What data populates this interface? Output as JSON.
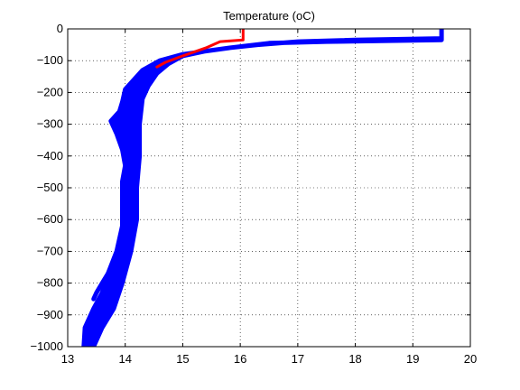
{
  "chart_data": {
    "type": "line",
    "title": "Temperature (oC)",
    "xlabel": "",
    "ylabel": "",
    "xlim": [
      13,
      20
    ],
    "ylim": [
      -1000,
      0
    ],
    "xticks": [
      13,
      14,
      15,
      16,
      17,
      18,
      19,
      20
    ],
    "yticks": [
      0,
      -100,
      -200,
      -300,
      -400,
      -500,
      -600,
      -700,
      -800,
      -900,
      -1000
    ],
    "xtick_labels": [
      "13",
      "14",
      "15",
      "16",
      "17",
      "18",
      "19",
      "20"
    ],
    "ytick_labels": [
      "0",
      "−100",
      "−200",
      "−300",
      "−400",
      "−500",
      "−600",
      "−700",
      "−800",
      "−900",
      "−1000"
    ],
    "grid": true,
    "legend": false,
    "colors": {
      "profiles": "#0000ff",
      "highlight": "#ff0000"
    },
    "series": [
      {
        "color": "#0000ff",
        "style": "envelope",
        "left": [
          [
            19.5,
            0
          ],
          [
            19.5,
            -35
          ],
          [
            17.5,
            -40
          ],
          [
            16.5,
            -45
          ],
          [
            15.8,
            -60
          ],
          [
            15.0,
            -80
          ],
          [
            14.6,
            -100
          ],
          [
            14.3,
            -130
          ],
          [
            14.15,
            -160
          ],
          [
            14.0,
            -190
          ],
          [
            13.95,
            -230
          ],
          [
            13.9,
            -260
          ],
          [
            13.75,
            -290
          ],
          [
            13.85,
            -330
          ],
          [
            13.95,
            -380
          ],
          [
            14.0,
            -430
          ],
          [
            13.95,
            -480
          ],
          [
            13.95,
            -550
          ],
          [
            13.95,
            -620
          ],
          [
            13.85,
            -700
          ],
          [
            13.7,
            -770
          ],
          [
            13.6,
            -830
          ],
          [
            13.45,
            -880
          ],
          [
            13.3,
            -940
          ],
          [
            13.28,
            -1000
          ]
        ],
        "right": [
          [
            19.5,
            0
          ],
          [
            19.5,
            -30
          ],
          [
            18.0,
            -35
          ],
          [
            17.0,
            -40
          ],
          [
            16.3,
            -50
          ],
          [
            15.8,
            -60
          ],
          [
            15.4,
            -70
          ],
          [
            15.0,
            -85
          ],
          [
            14.75,
            -110
          ],
          [
            14.55,
            -140
          ],
          [
            14.4,
            -180
          ],
          [
            14.3,
            -220
          ],
          [
            14.25,
            -300
          ],
          [
            14.25,
            -400
          ],
          [
            14.2,
            -500
          ],
          [
            14.2,
            -600
          ],
          [
            14.1,
            -700
          ],
          [
            13.95,
            -800
          ],
          [
            13.8,
            -880
          ],
          [
            13.6,
            -940
          ],
          [
            13.45,
            -1000
          ]
        ]
      },
      {
        "color": "#0000ff",
        "style": "branch",
        "points": [
          [
            13.7,
            -770
          ],
          [
            13.6,
            -800
          ],
          [
            13.5,
            -830
          ],
          [
            13.45,
            -850
          ]
        ]
      },
      {
        "color": "#ff0000",
        "style": "line",
        "points": [
          [
            16.05,
            0
          ],
          [
            16.05,
            -35
          ],
          [
            15.65,
            -40
          ],
          [
            15.4,
            -60
          ],
          [
            15.0,
            -85
          ],
          [
            14.7,
            -105
          ],
          [
            14.55,
            -120
          ]
        ]
      }
    ]
  }
}
